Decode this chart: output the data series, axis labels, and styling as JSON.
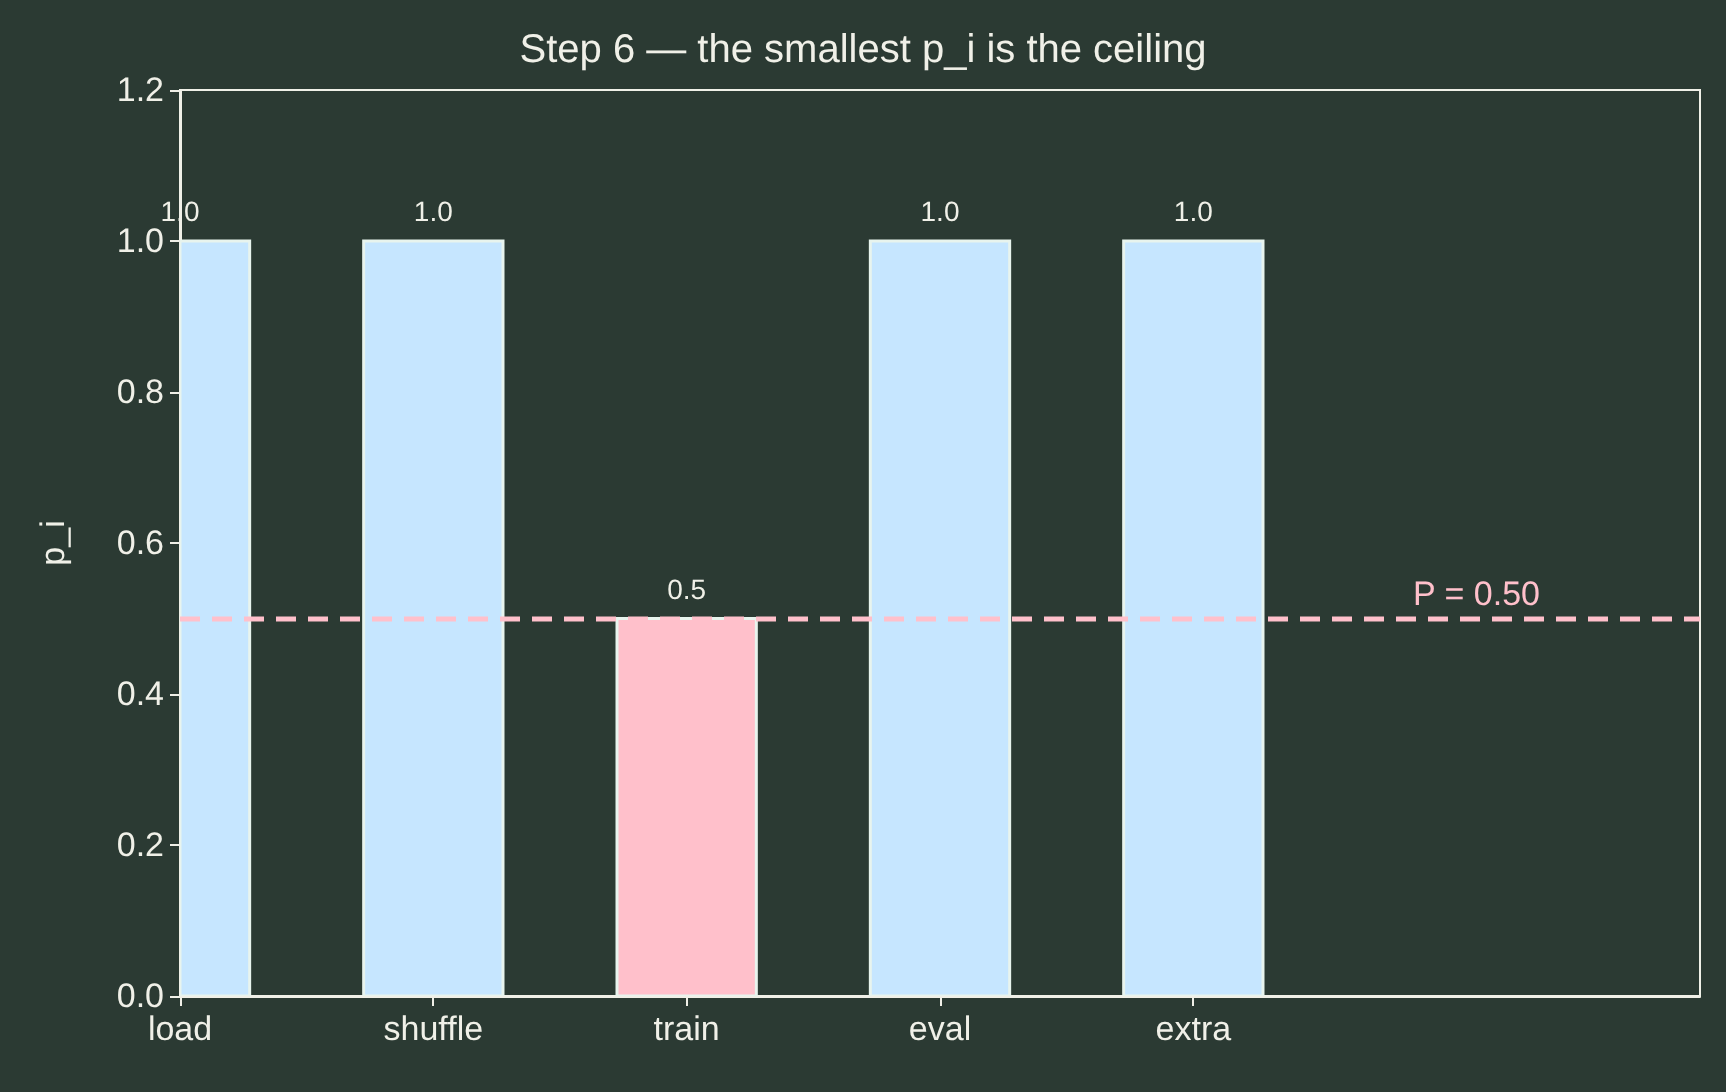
{
  "chart_data": {
    "type": "bar",
    "title": "Step 6 — the smallest p_i is the ceiling",
    "ylabel": "p_i",
    "categories": [
      "load",
      "shuffle",
      "train",
      "eval",
      "extra",
      null,
      null
    ],
    "values": [
      1.0,
      1.0,
      0.5,
      1.0,
      1.0,
      null,
      null
    ],
    "colors": [
      "#c6e6ff",
      "#c6e6ff",
      "#ffc0cb",
      "#c6e6ff",
      "#c6e6ff",
      null,
      null
    ],
    "value_labels": [
      "1.0",
      "1.0",
      "0.5",
      "1.0",
      "1.0",
      null,
      null
    ],
    "ylim": [
      0,
      1.2
    ],
    "yticks": [
      {
        "value": 0,
        "label": "0.0"
      },
      {
        "value": 0.2,
        "label": "0.2"
      },
      {
        "value": 0.4,
        "label": "0.4"
      },
      {
        "value": 0.6,
        "label": "0.6"
      },
      {
        "value": 0.8,
        "label": "0.8"
      },
      {
        "value": 1.0,
        "label": "1.0"
      },
      {
        "value": 1.2,
        "label": "1.2"
      }
    ],
    "ref_lines": [
      {
        "axis": "y",
        "value": 0.5,
        "label": "P = 0.50",
        "color": "#ffc0cb",
        "line_style": "dashed"
      }
    ],
    "grid": false
  }
}
